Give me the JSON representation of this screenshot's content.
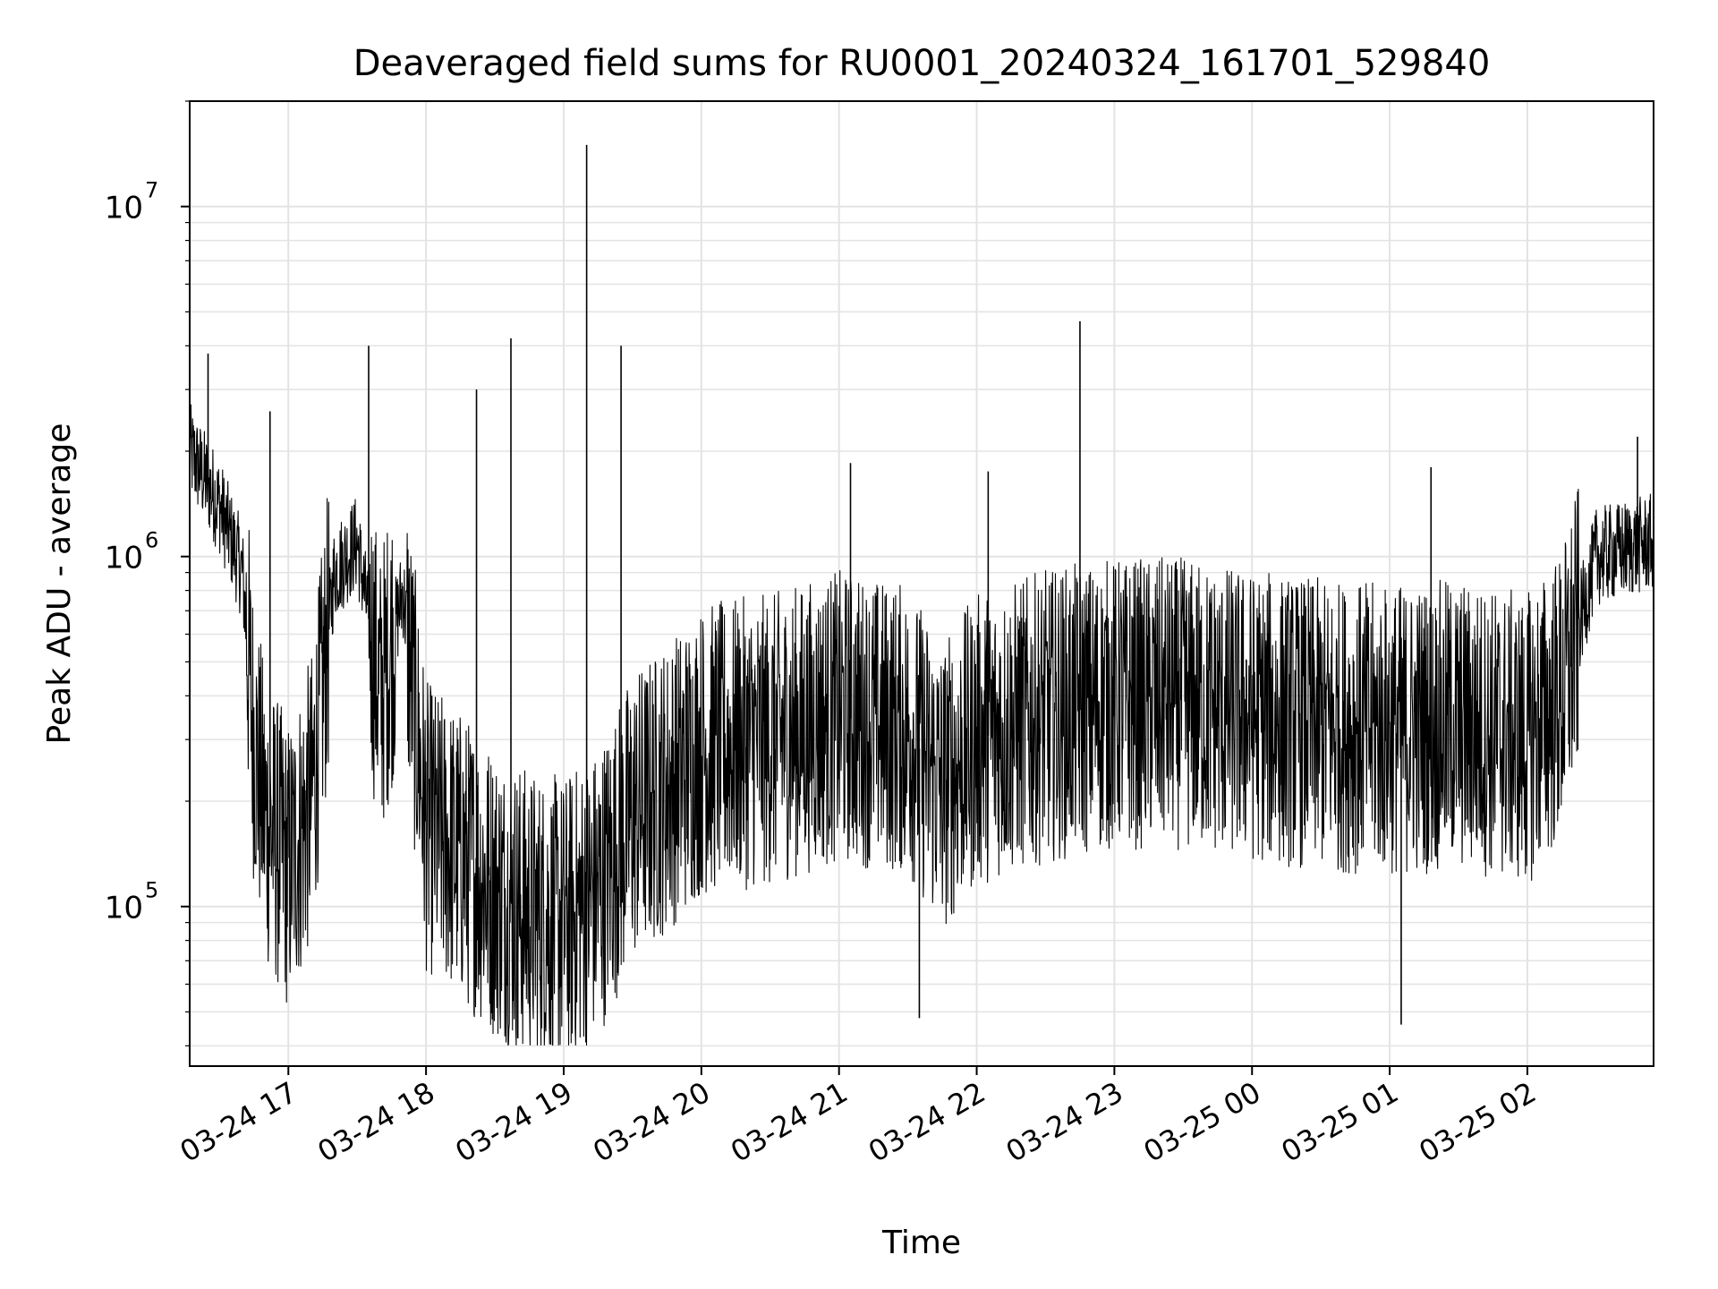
{
  "chart_data": {
    "type": "line",
    "title": "Deaveraged field sums for RU0001_20240324_161701_529840",
    "xlabel": "Time",
    "ylabel": "Peak ADU - average",
    "y_scale": "log",
    "xlim": [
      "2024-03-24 16:17",
      "2024-03-25 02:55"
    ],
    "ylim": [
      35000,
      20000000
    ],
    "y_ticks": [
      {
        "value": 100000,
        "base": "10",
        "exp": "5"
      },
      {
        "value": 1000000,
        "base": "10",
        "exp": "6"
      },
      {
        "value": 10000000,
        "base": "10",
        "exp": "7"
      }
    ],
    "x_ticks": [
      {
        "value": "2024-03-24 17:00",
        "label": "03-24 17"
      },
      {
        "value": "2024-03-24 18:00",
        "label": "03-24 18"
      },
      {
        "value": "2024-03-24 19:00",
        "label": "03-24 19"
      },
      {
        "value": "2024-03-24 20:00",
        "label": "03-24 20"
      },
      {
        "value": "2024-03-24 21:00",
        "label": "03-24 21"
      },
      {
        "value": "2024-03-24 22:00",
        "label": "03-24 22"
      },
      {
        "value": "2024-03-24 23:00",
        "label": "03-24 23"
      },
      {
        "value": "2024-03-25 00:00",
        "label": "03-25 00"
      },
      {
        "value": "2024-03-25 01:00",
        "label": "03-25 01"
      },
      {
        "value": "2024-03-25 02:00",
        "label": "03-25 02"
      }
    ],
    "grid": true,
    "series": [
      {
        "color": "#000000",
        "x": [
          "2024-03-24 16:17",
          "2024-03-24 16:30",
          "2024-03-24 16:40",
          "2024-03-24 16:45",
          "2024-03-24 16:50",
          "2024-03-24 17:00",
          "2024-03-24 17:10",
          "2024-03-24 17:20",
          "2024-03-24 17:30",
          "2024-03-24 17:40",
          "2024-03-24 17:50",
          "2024-03-24 18:00",
          "2024-03-24 18:15",
          "2024-03-24 18:30",
          "2024-03-24 18:45",
          "2024-03-24 19:00",
          "2024-03-24 19:15",
          "2024-03-24 19:30",
          "2024-03-24 19:45",
          "2024-03-24 20:00",
          "2024-03-24 20:30",
          "2024-03-24 21:00",
          "2024-03-24 21:30",
          "2024-03-24 21:45",
          "2024-03-24 22:00",
          "2024-03-24 22:30",
          "2024-03-24 23:00",
          "2024-03-24 23:30",
          "2024-03-25 00:00",
          "2024-03-25 00:30",
          "2024-03-25 01:00",
          "2024-03-25 01:30",
          "2024-03-25 02:00",
          "2024-03-25 02:15",
          "2024-03-25 02:30",
          "2024-03-25 02:55"
        ],
        "y": [
          2000000,
          1400000,
          900000,
          300000,
          180000,
          130000,
          200000,
          900000,
          1100000,
          400000,
          800000,
          170000,
          140000,
          110000,
          95000,
          90000,
          110000,
          180000,
          220000,
          280000,
          300000,
          350000,
          320000,
          220000,
          300000,
          350000,
          380000,
          380000,
          350000,
          330000,
          320000,
          330000,
          300000,
          400000,
          1000000,
          1100000
        ],
        "spikes": [
          {
            "x": "2024-03-24 19:10",
            "y": 15000000
          },
          {
            "x": "2024-03-24 18:37",
            "y": 4200000
          },
          {
            "x": "2024-03-24 17:35",
            "y": 4000000
          },
          {
            "x": "2024-03-24 19:25",
            "y": 4000000
          },
          {
            "x": "2024-03-24 22:45",
            "y": 4700000
          },
          {
            "x": "2024-03-24 18:22",
            "y": 3000000
          },
          {
            "x": "2024-03-24 16:25",
            "y": 3800000
          },
          {
            "x": "2024-03-24 16:52",
            "y": 2600000
          },
          {
            "x": "2024-03-24 21:05",
            "y": 1850000
          },
          {
            "x": "2024-03-24 22:05",
            "y": 1750000
          },
          {
            "x": "2024-03-25 01:18",
            "y": 1800000
          },
          {
            "x": "2024-03-25 02:48",
            "y": 2200000
          },
          {
            "x": "2024-03-24 18:40",
            "y": 42000
          },
          {
            "x": "2024-03-24 21:35",
            "y": 48000
          },
          {
            "x": "2024-03-25 01:05",
            "y": 46000
          }
        ]
      }
    ]
  }
}
